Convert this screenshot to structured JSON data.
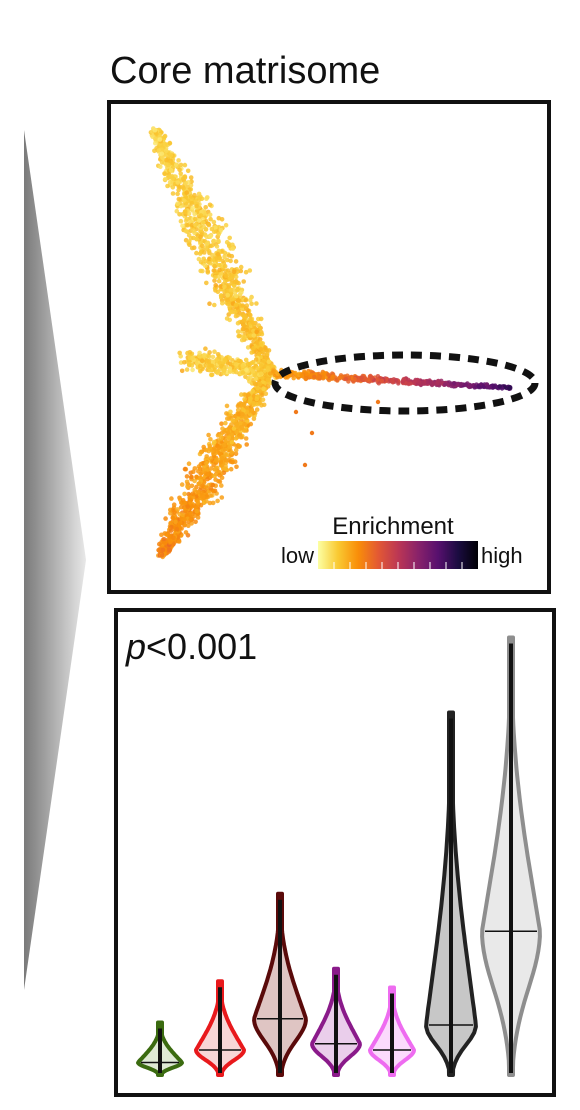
{
  "title": "Core matrisome",
  "chart_data": [
    {
      "type": "scatter",
      "title": "Core matrisome",
      "colorbar": {
        "label": "Enrichment",
        "low_label": "low",
        "high_label": "high",
        "colors": [
          "#fcffa4",
          "#f9c932",
          "#f98e09",
          "#e35933",
          "#bc3754",
          "#89226a",
          "#57106e",
          "#1b0c41",
          "#000004"
        ]
      },
      "annotation": "dashed ellipse highlights high-enrichment branch",
      "axes_visible": false
    },
    {
      "type": "violin",
      "annotation": "p<0.001",
      "annotation_prefix": "p",
      "annotation_suffix": "<0.001",
      "axes_visible": false,
      "series": [
        {
          "color": "#3b6b10",
          "fill": "#d9e6cc",
          "min": 0.0,
          "q1": 0.05,
          "median": 0.1,
          "q3": 0.2,
          "max": 0.42
        },
        {
          "color": "#e8191c",
          "fill": "#f7cfcf",
          "min": 0.0,
          "q1": 0.1,
          "median": 0.2,
          "q3": 0.35,
          "max": 0.75
        },
        {
          "color": "#5a0a0a",
          "fill": "#d9bbb8",
          "min": 0.0,
          "q1": 0.3,
          "median": 0.45,
          "q3": 0.6,
          "max": 1.45
        },
        {
          "color": "#8a1a8a",
          "fill": "#e6c5e8",
          "min": 0.0,
          "q1": 0.15,
          "median": 0.25,
          "q3": 0.45,
          "max": 0.85
        },
        {
          "color": "#ee6cf0",
          "fill": "#fad3fb",
          "min": 0.0,
          "q1": 0.1,
          "median": 0.2,
          "q3": 0.4,
          "max": 0.7
        },
        {
          "color": "#222222",
          "fill": "#bdbdbd",
          "min": 0.0,
          "q1": 0.2,
          "median": 0.4,
          "q3": 0.6,
          "max": 2.9
        },
        {
          "color": "#8e8e8e",
          "fill": "#e5e5e5",
          "min": 0.0,
          "q1": 0.9,
          "median": 1.15,
          "q3": 2.6,
          "max": 3.5
        }
      ],
      "ylim": [
        0,
        3.6
      ]
    }
  ]
}
